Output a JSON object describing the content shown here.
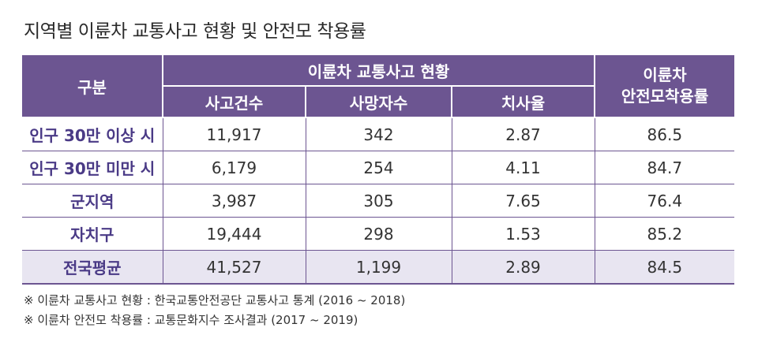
{
  "title": "지역별 이륜차 교통사고 현황 및 안전모 착용률",
  "table": {
    "header_group": "구분",
    "header_accident": "이륜차 교통사고 현황",
    "header_helmet": "이륜차\n안전모착용률",
    "sub_headers": [
      "사고건수",
      "사망자수",
      "치사율"
    ],
    "rows": [
      {
        "label": "인구 30만 이상 시",
        "accidents": "11,917",
        "deaths": "342",
        "fatality_rate": "2.87",
        "helmet_rate": "86.5"
      },
      {
        "label": "인구 30만 미만 시",
        "accidents": "6,179",
        "deaths": "254",
        "fatality_rate": "4.11",
        "helmet_rate": "84.7"
      },
      {
        "label": "군지역",
        "accidents": "3,987",
        "deaths": "305",
        "fatality_rate": "7.65",
        "helmet_rate": "76.4"
      },
      {
        "label": "자치구",
        "accidents": "19,444",
        "deaths": "298",
        "fatality_rate": "1.53",
        "helmet_rate": "85.2"
      },
      {
        "label": "전국평균",
        "accidents": "41,527",
        "deaths": "1,199",
        "fatality_rate": "2.89",
        "helmet_rate": "84.5"
      }
    ]
  },
  "notes": [
    "※ 이륜차 교통사고 현황 : 한국교통안전공단 교통사고 통계 (2016 ~ 2018)",
    "※ 이륜차 안전모 착용률 : 교통문화지수 조사결과 (2017 ~ 2019)"
  ],
  "colors": {
    "header_bg": "#6c5591",
    "label_text": "#4a3a86",
    "average_row_bg": "#e8e5f1"
  }
}
